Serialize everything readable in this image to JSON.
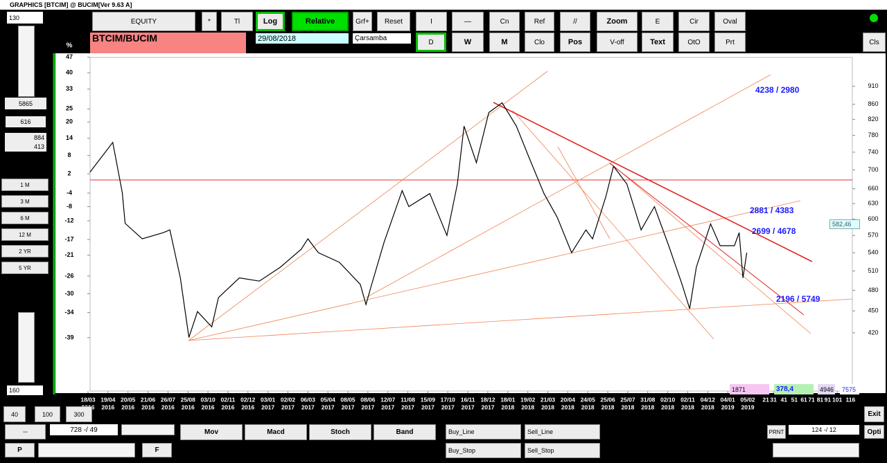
{
  "window": {
    "title": "GRAPHICS  [BTCIM] @ BUCIM[Ver 9.63 A]"
  },
  "toolbar": {
    "row1": [
      "EQUITY",
      "*",
      "Tl",
      "Log",
      "Relative",
      "Grf+",
      "Reset",
      "I",
      "—",
      "Cn",
      "Ref",
      "//",
      "Zoom",
      "E",
      "Cir",
      "Oval"
    ],
    "symbol": "BTCIM/BUCIM",
    "date": "29/08/2018",
    "weekday": "Çarsamba",
    "row2": [
      "D",
      "W",
      "M",
      "Clo",
      "Pos",
      "V-off",
      "Text",
      "OtO",
      "Prt"
    ],
    "close": "Cls"
  },
  "left_panel": {
    "top_input": "130",
    "value1": "5865",
    "value2": "616",
    "value3a": "884",
    "value3b": "413",
    "periods": [
      "1 M",
      "3 M",
      "6 M",
      "12 M",
      "2 YR",
      "5 YR"
    ],
    "bottom_input": "160"
  },
  "chart_data": {
    "type": "line",
    "log_scale": true,
    "grid": false,
    "y2label": "%",
    "xlim": [
      0,
      808
    ],
    "xticks": [
      {
        "value": 0,
        "label": "18/03",
        "sublabel": "2016"
      },
      {
        "value": 21,
        "label": "19/04",
        "sublabel": "2016"
      },
      {
        "value": 42,
        "label": "20/05",
        "sublabel": "2016"
      },
      {
        "value": 63,
        "label": "21/06",
        "sublabel": "2016"
      },
      {
        "value": 84,
        "label": "26/07",
        "sublabel": "2016"
      },
      {
        "value": 105,
        "label": "25/08",
        "sublabel": "2016"
      },
      {
        "value": 126,
        "label": "03/10",
        "sublabel": "2016"
      },
      {
        "value": 147,
        "label": "02/11",
        "sublabel": "2016"
      },
      {
        "value": 168,
        "label": "02/12",
        "sublabel": "2016"
      },
      {
        "value": 189,
        "label": "03/01",
        "sublabel": "2017"
      },
      {
        "value": 210,
        "label": "02/02",
        "sublabel": "2017"
      },
      {
        "value": 231,
        "label": "06/03",
        "sublabel": "2017"
      },
      {
        "value": 252,
        "label": "05/04",
        "sublabel": "2017"
      },
      {
        "value": 273,
        "label": "08/05",
        "sublabel": "2017"
      },
      {
        "value": 294,
        "label": "08/06",
        "sublabel": "2017"
      },
      {
        "value": 315,
        "label": "12/07",
        "sublabel": "2017"
      },
      {
        "value": 336,
        "label": "11/08",
        "sublabel": "2017"
      },
      {
        "value": 357,
        "label": "15/09",
        "sublabel": "2017"
      },
      {
        "value": 378,
        "label": "17/10",
        "sublabel": "2017"
      },
      {
        "value": 399,
        "label": "16/11",
        "sublabel": "2017"
      },
      {
        "value": 420,
        "label": "18/12",
        "sublabel": "2017"
      },
      {
        "value": 441,
        "label": "18/01",
        "sublabel": "2018"
      },
      {
        "value": 462,
        "label": "19/02",
        "sublabel": "2018"
      },
      {
        "value": 483,
        "label": "21/03",
        "sublabel": "2018"
      },
      {
        "value": 504,
        "label": "20/04",
        "sublabel": "2018"
      },
      {
        "value": 525,
        "label": "24/05",
        "sublabel": "2018"
      },
      {
        "value": 546,
        "label": "25/06",
        "sublabel": "2018"
      },
      {
        "value": 567,
        "label": "25/07",
        "sublabel": "2018"
      },
      {
        "value": 588,
        "label": "31/08",
        "sublabel": "2018"
      },
      {
        "value": 609,
        "label": "02/10",
        "sublabel": "2018"
      },
      {
        "value": 630,
        "label": "02/11",
        "sublabel": "2018"
      },
      {
        "value": 651,
        "label": "04/12",
        "sublabel": "2018"
      },
      {
        "value": 672,
        "label": "04/01",
        "sublabel": "2019"
      },
      {
        "value": 693,
        "label": "05/02",
        "sublabel": "2019"
      },
      {
        "value": 712,
        "label": "21"
      },
      {
        "value": 720,
        "label": "31"
      },
      {
        "value": 731,
        "label": "41"
      },
      {
        "value": 742,
        "label": "51"
      },
      {
        "value": 752,
        "label": "61"
      },
      {
        "value": 760,
        "label": "71"
      },
      {
        "value": 769,
        "label": "81"
      },
      {
        "value": 777,
        "label": "91"
      },
      {
        "value": 787,
        "label": "101"
      },
      {
        "value": 801,
        "label": "116"
      }
    ],
    "ylim": [
      350,
      996
    ],
    "yticks": [
      910,
      860,
      820,
      780,
      740,
      700,
      660,
      630,
      600,
      570,
      540,
      510,
      480,
      450,
      420
    ],
    "y2lim": [
      -48.4,
      46.9
    ],
    "y2ticks": [
      47,
      40,
      33,
      25,
      20,
      14,
      8,
      2,
      -4,
      -8,
      -12,
      -17,
      -21,
      -26,
      -30,
      -34,
      -39
    ],
    "series": [
      {
        "color": "#000000",
        "x": [
          2,
          26,
          36,
          39,
          57,
          79,
          86,
          97,
          106,
          115,
          130,
          137,
          159,
          180,
          202,
          224,
          231,
          242,
          264,
          286,
          292,
          297,
          311,
          330,
          337,
          359,
          377,
          388,
          395,
          408,
          421,
          435,
          450,
          464,
          479,
          493,
          508,
          523,
          530,
          544,
          552,
          566,
          581,
          595,
          610,
          624,
          632,
          639,
          654,
          664,
          679,
          684,
          688,
          692
        ],
        "values": [
          695,
          763,
          652,
          592,
          564,
          575,
          580,
          499,
          414,
          449,
          428,
          469,
          499,
          494,
          516,
          546,
          564,
          540,
          524,
          489,
          459,
          484,
          558,
          656,
          624,
          650,
          570,
          670,
          803,
          716,
          838,
          864,
          803,
          724,
          650,
          603,
          540,
          580,
          564,
          644,
          708,
          670,
          580,
          624,
          552,
          489,
          453,
          516,
          591,
          552,
          552,
          575,
          499,
          540
        ]
      }
    ],
    "annotations": [
      "4238 / 2980",
      "2881 / 4383",
      "2699 / 4678",
      "2196 / 5749"
    ],
    "price_label": "582,46",
    "stats": [
      "1871",
      "378,4",
      "4946",
      "7575"
    ]
  },
  "bottom_bar": {
    "zoom": [
      "40",
      "100",
      "300"
    ],
    "left_box": "--",
    "position": "728 -/ 49",
    "prev": "P",
    "next": "F",
    "indicators": [
      "Mov",
      "Macd",
      "Stoch",
      "Band"
    ],
    "orders": [
      "Buy_Line",
      "Sell_Line",
      "Buy_Stop",
      "Sell_Stop"
    ],
    "print": "PRNT",
    "range": "124 -/ 12",
    "exit": "Exit",
    "opti": "Opti"
  }
}
